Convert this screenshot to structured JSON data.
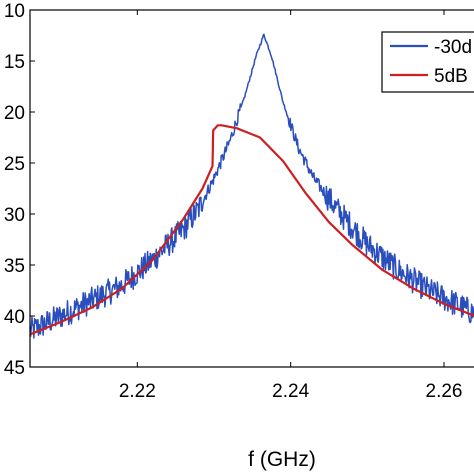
{
  "chart_data": {
    "type": "line",
    "xlabel": "f (GHz)",
    "ylabel": "",
    "xlim": [
      2.206,
      2.266
    ],
    "ylim": [
      -45,
      -10
    ],
    "y_reversed": true,
    "x_ticks": [
      2.22,
      2.24,
      2.26
    ],
    "x_tick_labels": [
      "2.22",
      "2.24",
      "2.26"
    ],
    "y_ticks": [
      -10,
      -15,
      -20,
      -25,
      -30,
      -35,
      -40,
      -45
    ],
    "y_tick_labels": [
      "10",
      "15",
      "20",
      "25",
      "30",
      "35",
      "40",
      "45"
    ],
    "grid": false,
    "legend_position": "top-right",
    "series": [
      {
        "name": "-30d",
        "color": "#2a4fbd",
        "noisy": true,
        "x": [
          2.206,
          2.21,
          2.214,
          2.218,
          2.222,
          2.226,
          2.228,
          2.23,
          2.232,
          2.234,
          2.2355,
          2.2365,
          2.2375,
          2.239,
          2.241,
          2.243,
          2.246,
          2.25,
          2.254,
          2.258,
          2.262,
          2.266
        ],
        "y": [
          -41.5,
          -40.0,
          -38.5,
          -37.0,
          -34.5,
          -31.5,
          -29.5,
          -26.5,
          -23.0,
          -18.5,
          -14.5,
          -12.4,
          -14.5,
          -19.0,
          -23.5,
          -26.5,
          -29.5,
          -33.0,
          -35.5,
          -37.5,
          -39.0,
          -40.5
        ]
      },
      {
        "name": "5dB",
        "color": "#cc1f1f",
        "noisy": false,
        "x": [
          2.206,
          2.21,
          2.214,
          2.218,
          2.222,
          2.226,
          2.2285,
          2.2298,
          2.2299,
          2.2305,
          2.231,
          2.233,
          2.236,
          2.239,
          2.242,
          2.245,
          2.248,
          2.252,
          2.256,
          2.26,
          2.264,
          2.266
        ],
        "y": [
          -41.8,
          -40.6,
          -39.2,
          -37.3,
          -34.5,
          -30.5,
          -27.5,
          -25.3,
          -21.8,
          -21.3,
          -21.3,
          -21.6,
          -22.5,
          -24.8,
          -28.0,
          -30.8,
          -33.0,
          -35.5,
          -37.3,
          -38.8,
          -40.0,
          -40.6
        ]
      }
    ]
  }
}
